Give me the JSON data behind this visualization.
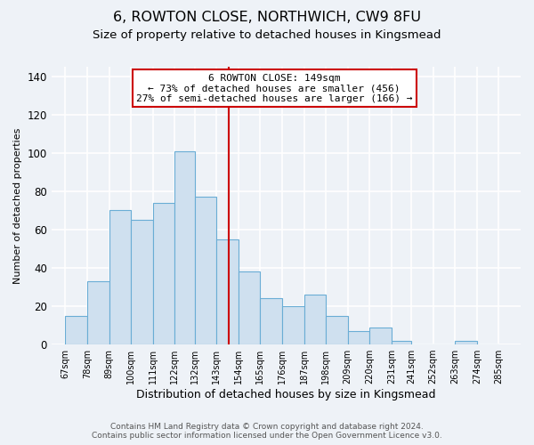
{
  "title": "6, ROWTON CLOSE, NORTHWICH, CW9 8FU",
  "subtitle": "Size of property relative to detached houses in Kingsmead",
  "xlabel": "Distribution of detached houses by size in Kingsmead",
  "ylabel": "Number of detached properties",
  "bar_left_edges": [
    67,
    78,
    89,
    100,
    111,
    122,
    132,
    143,
    154,
    165,
    176,
    187,
    198,
    209,
    220,
    231,
    241,
    252,
    263,
    274
  ],
  "bar_widths": [
    11,
    11,
    11,
    11,
    11,
    10,
    11,
    11,
    11,
    11,
    11,
    11,
    11,
    11,
    11,
    10,
    11,
    11,
    11,
    11
  ],
  "bar_heights": [
    15,
    33,
    70,
    65,
    74,
    101,
    77,
    55,
    38,
    24,
    20,
    26,
    15,
    7,
    9,
    2,
    0,
    0,
    2,
    0
  ],
  "bar_color": "#cfe0ef",
  "bar_edgecolor": "#6aadd5",
  "vline_x": 149,
  "vline_color": "#cc0000",
  "box_text_line1": "6 ROWTON CLOSE: 149sqm",
  "box_text_line2": "← 73% of detached houses are smaller (456)",
  "box_text_line3": "27% of semi-detached houses are larger (166) →",
  "box_facecolor": "white",
  "box_edgecolor": "#cc0000",
  "xtick_labels": [
    "67sqm",
    "78sqm",
    "89sqm",
    "100sqm",
    "111sqm",
    "122sqm",
    "132sqm",
    "143sqm",
    "154sqm",
    "165sqm",
    "176sqm",
    "187sqm",
    "198sqm",
    "209sqm",
    "220sqm",
    "231sqm",
    "241sqm",
    "252sqm",
    "263sqm",
    "274sqm",
    "285sqm"
  ],
  "xtick_positions": [
    67,
    78,
    89,
    100,
    111,
    122,
    132,
    143,
    154,
    165,
    176,
    187,
    198,
    209,
    220,
    231,
    241,
    252,
    263,
    274,
    285
  ],
  "ytick_positions": [
    0,
    20,
    40,
    60,
    80,
    100,
    120,
    140
  ],
  "ylim": [
    0,
    145
  ],
  "xlim": [
    60,
    296
  ],
  "background_color": "#eef2f7",
  "footer_line1": "Contains HM Land Registry data © Crown copyright and database right 2024.",
  "footer_line2": "Contains public sector information licensed under the Open Government Licence v3.0.",
  "title_fontsize": 11.5,
  "subtitle_fontsize": 9.5,
  "xlabel_fontsize": 9,
  "ylabel_fontsize": 8,
  "xtick_fontsize": 7,
  "ytick_fontsize": 8.5,
  "footer_fontsize": 6.5,
  "grid_color": "#ffffff",
  "grid_linewidth": 1.2
}
